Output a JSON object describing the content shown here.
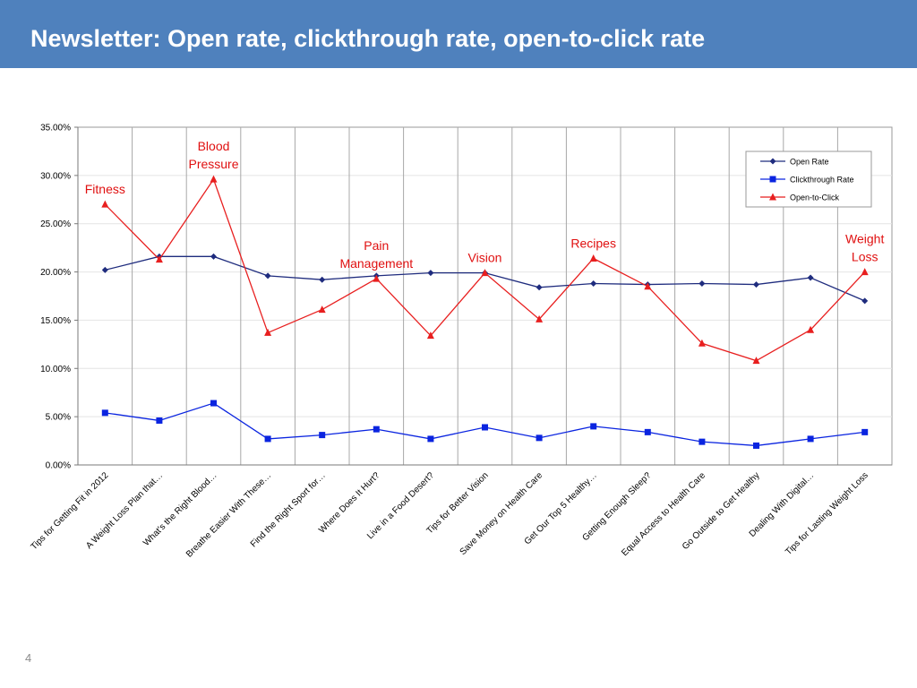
{
  "slide": {
    "title": "Newsletter: Open rate, clickthrough rate, open-to-click rate",
    "page_number": "4"
  },
  "chart_data": {
    "type": "line",
    "categories": [
      "Tips for Getting Fit in 2012",
      "A Weight Loss Plan that…",
      "What's the Right Blood…",
      "Breathe Easier With These…",
      "Find the Right Sport for…",
      "Where Does It Hurt?",
      "Live in a Food Desert?",
      "Tips for Better Vision",
      "Save Money on Health Care",
      "Get Our Top 5 Healthy…",
      "Getting Enough Sleep?",
      "Equal Access to Health Care",
      "Go Outside to Get Healthy",
      "Dealing With Digital…",
      "Tips for Lasting Weight Loss"
    ],
    "ylim": [
      0,
      0.35
    ],
    "yticks": [
      {
        "value": 0.35,
        "label": "35.00%"
      },
      {
        "value": 0.3,
        "label": "30.00%"
      },
      {
        "value": 0.25,
        "label": "25.00%"
      },
      {
        "value": 0.2,
        "label": "20.00%"
      },
      {
        "value": 0.15,
        "label": "15.00%"
      },
      {
        "value": 0.1,
        "label": "10.00%"
      },
      {
        "value": 0.05,
        "label": "5.00%"
      },
      {
        "value": 0.0,
        "label": "0.00%"
      }
    ],
    "grid": true,
    "legend_position": "top-right",
    "series": [
      {
        "name": "Open Rate",
        "color": "#1f2c7e",
        "marker": "diamond",
        "values": [
          0.202,
          0.216,
          0.216,
          0.196,
          0.192,
          0.196,
          0.199,
          0.199,
          0.184,
          0.188,
          0.187,
          0.188,
          0.187,
          0.194,
          0.17
        ]
      },
      {
        "name": "Clickthrough Rate",
        "color": "#0a24e0",
        "marker": "square",
        "values": [
          0.054,
          0.046,
          0.064,
          0.027,
          0.031,
          0.037,
          0.027,
          0.039,
          0.028,
          0.04,
          0.034,
          0.024,
          0.02,
          0.027,
          0.034
        ]
      },
      {
        "name": "Open-to-Click",
        "color": "#e81f1f",
        "marker": "triangle",
        "values": [
          0.27,
          0.213,
          0.296,
          0.137,
          0.161,
          0.193,
          0.134,
          0.199,
          0.151,
          0.214,
          0.185,
          0.126,
          0.108,
          0.14,
          0.2
        ]
      }
    ],
    "annotations": [
      {
        "index": 0,
        "lines": [
          "Fitness"
        ]
      },
      {
        "index": 2,
        "lines": [
          "Blood",
          "Pressure"
        ]
      },
      {
        "index": 5,
        "lines": [
          "Pain",
          "Management"
        ]
      },
      {
        "index": 7,
        "lines": [
          "Vision"
        ]
      },
      {
        "index": 9,
        "lines": [
          "Recipes"
        ]
      },
      {
        "index": 14,
        "lines": [
          "Weight",
          "Loss"
        ]
      }
    ],
    "annotation_color": "#e01010"
  }
}
